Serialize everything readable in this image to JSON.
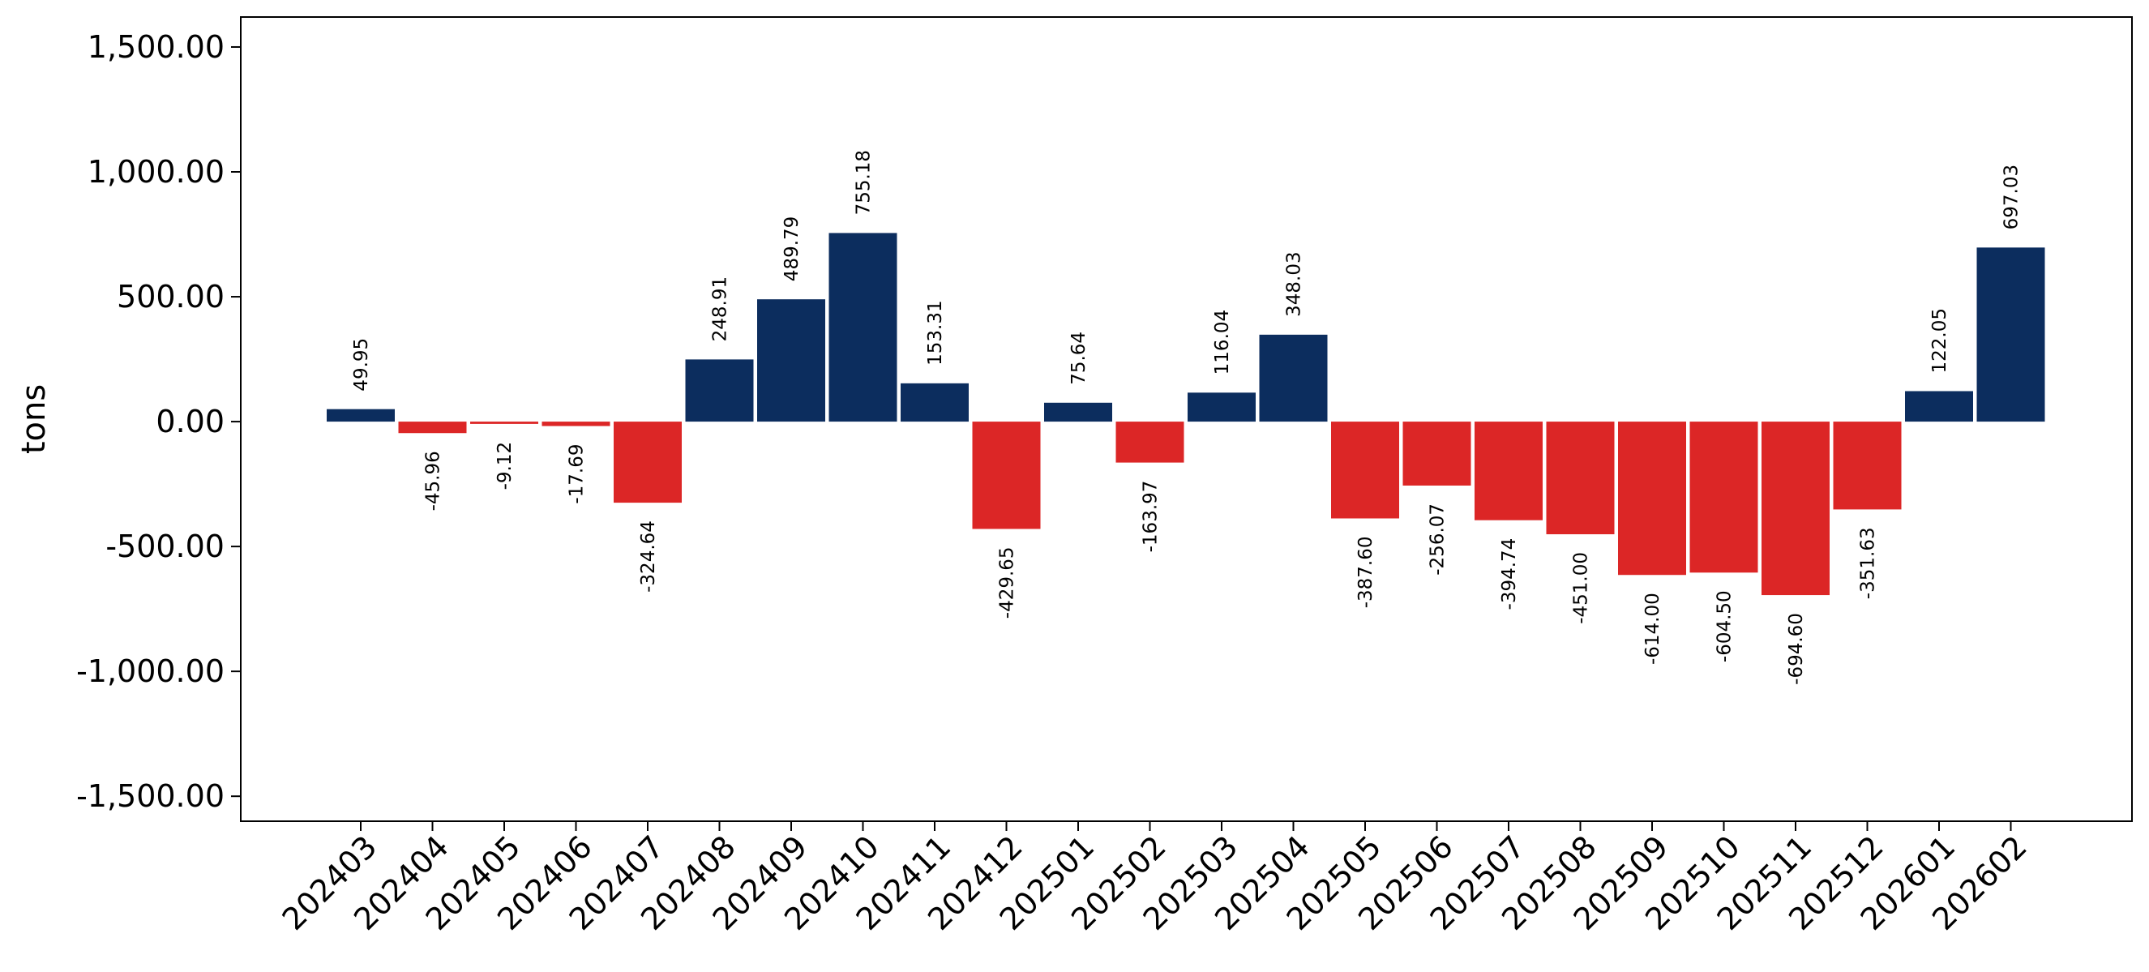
{
  "chart_data": {
    "type": "bar",
    "ylabel": "tons",
    "ylim": [
      -1600,
      1620
    ],
    "yticks": [
      1500,
      1000,
      500,
      0,
      -500,
      -1000,
      -1500
    ],
    "ytick_labels": [
      "1,500.00",
      "1,000.00",
      "500.00",
      "0.00",
      "-500.00",
      "-1,000.00",
      "-1,500.00"
    ],
    "grid": false,
    "positive_color": "#0c2d5e",
    "negative_color": "#dc2626",
    "categories": [
      "202403",
      "202404",
      "202405",
      "202406",
      "202407",
      "202408",
      "202409",
      "202410",
      "202411",
      "202412",
      "202501",
      "202502",
      "202503",
      "202504",
      "202505",
      "202506",
      "202507",
      "202508",
      "202509",
      "202510",
      "202511",
      "202512",
      "202601",
      "202602"
    ],
    "values": [
      49.95,
      -45.96,
      -9.12,
      -17.69,
      -324.64,
      248.91,
      489.79,
      755.18,
      153.31,
      -429.65,
      75.64,
      -163.97,
      116.04,
      348.03,
      -387.6,
      -256.07,
      -394.74,
      -451.0,
      -614.0,
      -604.5,
      -694.6,
      -351.63,
      122.05,
      697.03
    ],
    "labels": [
      "49.95",
      "-45.96",
      "-9.12",
      "-17.69",
      "-324.64",
      "248.91",
      "489.79",
      "755.18",
      "153.31",
      "-429.65",
      "75.64",
      "-163.97",
      "116.04",
      "348.03",
      "-387.60",
      "-256.07",
      "-394.74",
      "-451.00",
      "-614.00",
      "-604.50",
      "-694.60",
      "-351.63",
      "122.05",
      "697.03"
    ]
  }
}
